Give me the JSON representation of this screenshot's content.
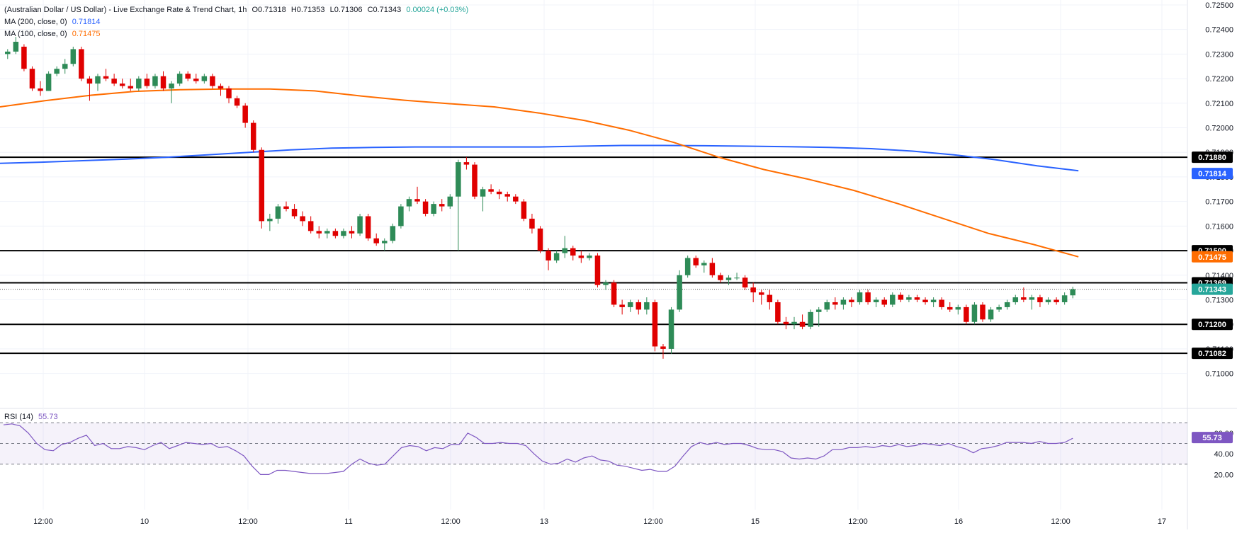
{
  "header": {
    "title": "(Australian Dollar / US Dollar) - Live Exchange Rate & Trend Chart, 1h",
    "ohlc": {
      "open": "O0.71318",
      "high": "H0.71353",
      "low": "L0.71306",
      "close": "C0.71343",
      "change": "0.00024 (+0.03%)"
    },
    "ma200_label": "MA (200, close, 0)",
    "ma200_value": "0.71814",
    "ma100_label": "MA (100, close, 0)",
    "ma100_value": "0.71475",
    "rsi_label": "RSI (14)",
    "rsi_value": "55.73"
  },
  "colors": {
    "up": "#26a69a",
    "down": "#ef5350",
    "ma200": "#2962ff",
    "ma100": "#ff6d00",
    "rsi": "#7e57c2",
    "current": "#26a69a"
  },
  "chart_data": {
    "type": "candlestick",
    "y_ticks": [
      "0.72500",
      "0.72400",
      "0.72300",
      "0.72200",
      "0.72100",
      "0.72000",
      "0.71900",
      "0.71800",
      "0.71700",
      "0.71600",
      "0.71500",
      "0.71400",
      "0.71300",
      "0.71200",
      "0.71100",
      "0.71000"
    ],
    "ylim": [
      0.7095,
      0.7252
    ],
    "x_ticks": [
      "12:00",
      "10",
      "12:00",
      "11",
      "12:00",
      "13",
      "12:00",
      "15",
      "12:00",
      "16",
      "12:00",
      "17"
    ],
    "horizontal_levels": [
      {
        "value": 0.7188,
        "label": "0.71880"
      },
      {
        "value": 0.715,
        "label": "0.71500"
      },
      {
        "value": 0.71369,
        "label": "0.71369"
      },
      {
        "value": 0.712,
        "label": "0.71200"
      },
      {
        "value": 0.71082,
        "label": "0.71082"
      }
    ],
    "price_badges": [
      {
        "value": 0.71814,
        "label": "0.71814",
        "series": "ma200"
      },
      {
        "value": 0.71475,
        "label": "0.71475",
        "series": "ma100"
      },
      {
        "value": 0.71343,
        "label": "0.71343",
        "series": "current"
      }
    ],
    "candles": [
      [
        0.723,
        0.7232,
        0.7228,
        0.7231
      ],
      [
        0.7231,
        0.7237,
        0.723,
        0.7235
      ],
      [
        0.7233,
        0.7234,
        0.7223,
        0.7224
      ],
      [
        0.7224,
        0.7225,
        0.7215,
        0.7216
      ],
      [
        0.7216,
        0.7219,
        0.7213,
        0.7215
      ],
      [
        0.7215,
        0.7223,
        0.7215,
        0.7222
      ],
      [
        0.7222,
        0.7225,
        0.7221,
        0.7224
      ],
      [
        0.7224,
        0.7228,
        0.7222,
        0.7226
      ],
      [
        0.7226,
        0.7233,
        0.7225,
        0.7232
      ],
      [
        0.7232,
        0.7233,
        0.7219,
        0.722
      ],
      [
        0.722,
        0.7221,
        0.7211,
        0.7218
      ],
      [
        0.7218,
        0.7222,
        0.7215,
        0.7221
      ],
      [
        0.7221,
        0.7224,
        0.7219,
        0.722
      ],
      [
        0.722,
        0.7222,
        0.7217,
        0.7218
      ],
      [
        0.7218,
        0.722,
        0.7216,
        0.7217
      ],
      [
        0.7217,
        0.722,
        0.7215,
        0.7216
      ],
      [
        0.7216,
        0.7221,
        0.7215,
        0.722
      ],
      [
        0.722,
        0.7222,
        0.7216,
        0.7217
      ],
      [
        0.7217,
        0.7222,
        0.7216,
        0.7221
      ],
      [
        0.7221,
        0.7223,
        0.7215,
        0.7216
      ],
      [
        0.7216,
        0.7219,
        0.721,
        0.7218
      ],
      [
        0.7218,
        0.7223,
        0.7217,
        0.7222
      ],
      [
        0.7222,
        0.7223,
        0.7219,
        0.722
      ],
      [
        0.722,
        0.7222,
        0.7218,
        0.7219
      ],
      [
        0.7219,
        0.7222,
        0.7218,
        0.7221
      ],
      [
        0.7221,
        0.7222,
        0.7216,
        0.7217
      ],
      [
        0.7217,
        0.7218,
        0.7213,
        0.7216
      ],
      [
        0.7216,
        0.7217,
        0.721,
        0.7212
      ],
      [
        0.7212,
        0.7213,
        0.7208,
        0.7209
      ],
      [
        0.7209,
        0.721,
        0.72,
        0.7202
      ],
      [
        0.7202,
        0.7203,
        0.719,
        0.7191
      ],
      [
        0.7191,
        0.7192,
        0.7159,
        0.7162
      ],
      [
        0.7162,
        0.7165,
        0.7158,
        0.7163
      ],
      [
        0.7163,
        0.7169,
        0.7161,
        0.7168
      ],
      [
        0.7168,
        0.717,
        0.7166,
        0.7167
      ],
      [
        0.7167,
        0.7169,
        0.7163,
        0.7164
      ],
      [
        0.7164,
        0.7166,
        0.716,
        0.7162
      ],
      [
        0.7162,
        0.7164,
        0.7157,
        0.7158
      ],
      [
        0.7158,
        0.716,
        0.7155,
        0.7157
      ],
      [
        0.7157,
        0.7159,
        0.7155,
        0.7158
      ],
      [
        0.7158,
        0.7159,
        0.7155,
        0.7156
      ],
      [
        0.7156,
        0.7159,
        0.7155,
        0.7158
      ],
      [
        0.7158,
        0.716,
        0.7155,
        0.7157
      ],
      [
        0.7157,
        0.7165,
        0.7156,
        0.7164
      ],
      [
        0.7164,
        0.7165,
        0.7154,
        0.7155
      ],
      [
        0.7155,
        0.7157,
        0.7152,
        0.7153
      ],
      [
        0.7153,
        0.7155,
        0.715,
        0.7154
      ],
      [
        0.7154,
        0.7161,
        0.7153,
        0.716
      ],
      [
        0.716,
        0.7169,
        0.7159,
        0.7168
      ],
      [
        0.7168,
        0.7172,
        0.7166,
        0.7171
      ],
      [
        0.7171,
        0.7176,
        0.7169,
        0.717
      ],
      [
        0.717,
        0.7171,
        0.7164,
        0.7165
      ],
      [
        0.7165,
        0.717,
        0.7164,
        0.7169
      ],
      [
        0.7169,
        0.7171,
        0.7166,
        0.7168
      ],
      [
        0.7168,
        0.7173,
        0.7167,
        0.7172
      ],
      [
        0.7172,
        0.7187,
        0.715,
        0.7186
      ],
      [
        0.7186,
        0.7188,
        0.7183,
        0.7185
      ],
      [
        0.7185,
        0.7186,
        0.7171,
        0.7172
      ],
      [
        0.7172,
        0.7176,
        0.7166,
        0.7175
      ],
      [
        0.7175,
        0.7177,
        0.7173,
        0.7174
      ],
      [
        0.7174,
        0.7175,
        0.7171,
        0.7173
      ],
      [
        0.7173,
        0.7174,
        0.717,
        0.7172
      ],
      [
        0.7172,
        0.7173,
        0.7169,
        0.717
      ],
      [
        0.717,
        0.7171,
        0.7162,
        0.7163
      ],
      [
        0.7163,
        0.7165,
        0.7157,
        0.7159
      ],
      [
        0.7159,
        0.716,
        0.7149,
        0.715
      ],
      [
        0.715,
        0.7151,
        0.7142,
        0.7146
      ],
      [
        0.7146,
        0.715,
        0.7145,
        0.7149
      ],
      [
        0.7149,
        0.7156,
        0.7147,
        0.7151
      ],
      [
        0.7151,
        0.7152,
        0.7146,
        0.7148
      ],
      [
        0.7148,
        0.715,
        0.7145,
        0.7147
      ],
      [
        0.7147,
        0.7149,
        0.7146,
        0.7148
      ],
      [
        0.7148,
        0.7149,
        0.7135,
        0.7136
      ],
      [
        0.7136,
        0.7138,
        0.7134,
        0.7137
      ],
      [
        0.7137,
        0.7138,
        0.7127,
        0.7128
      ],
      [
        0.7128,
        0.713,
        0.7124,
        0.7127
      ],
      [
        0.7127,
        0.713,
        0.7125,
        0.7129
      ],
      [
        0.7129,
        0.713,
        0.7124,
        0.7126
      ],
      [
        0.7126,
        0.7131,
        0.7124,
        0.7129
      ],
      [
        0.7129,
        0.713,
        0.7109,
        0.7111
      ],
      [
        0.7111,
        0.7112,
        0.7106,
        0.711
      ],
      [
        0.711,
        0.7127,
        0.7108,
        0.7126
      ],
      [
        0.7126,
        0.7142,
        0.7125,
        0.714
      ],
      [
        0.714,
        0.7148,
        0.7139,
        0.7147
      ],
      [
        0.7147,
        0.7148,
        0.7143,
        0.7144
      ],
      [
        0.7144,
        0.7146,
        0.7141,
        0.7145
      ],
      [
        0.7145,
        0.7147,
        0.7139,
        0.714
      ],
      [
        0.714,
        0.7141,
        0.7137,
        0.7138
      ],
      [
        0.7138,
        0.714,
        0.7136,
        0.7139
      ],
      [
        0.7139,
        0.7141,
        0.7138,
        0.7139
      ],
      [
        0.7139,
        0.714,
        0.7134,
        0.7135
      ],
      [
        0.7135,
        0.7137,
        0.7129,
        0.7133
      ],
      [
        0.7133,
        0.7134,
        0.7128,
        0.7132
      ],
      [
        0.7132,
        0.7134,
        0.7126,
        0.7129
      ],
      [
        0.7129,
        0.713,
        0.712,
        0.7121
      ],
      [
        0.7121,
        0.7123,
        0.7118,
        0.712
      ],
      [
        0.712,
        0.7123,
        0.7118,
        0.7121
      ],
      [
        0.7121,
        0.7124,
        0.7118,
        0.7119
      ],
      [
        0.7119,
        0.7126,
        0.7118,
        0.7125
      ],
      [
        0.7125,
        0.7127,
        0.7119,
        0.7126
      ],
      [
        0.7126,
        0.713,
        0.7125,
        0.7129
      ],
      [
        0.7129,
        0.7131,
        0.7126,
        0.7128
      ],
      [
        0.7128,
        0.7131,
        0.7126,
        0.713
      ],
      [
        0.713,
        0.7131,
        0.7127,
        0.7129
      ],
      [
        0.7129,
        0.7134,
        0.7128,
        0.7133
      ],
      [
        0.7133,
        0.7134,
        0.7128,
        0.7129
      ],
      [
        0.7129,
        0.7131,
        0.7127,
        0.713
      ],
      [
        0.713,
        0.7131,
        0.7127,
        0.7128
      ],
      [
        0.7128,
        0.7133,
        0.7127,
        0.7132
      ],
      [
        0.7132,
        0.7133,
        0.7129,
        0.713
      ],
      [
        0.713,
        0.7132,
        0.7129,
        0.7131
      ],
      [
        0.7131,
        0.7132,
        0.7129,
        0.713
      ],
      [
        0.713,
        0.7131,
        0.7128,
        0.7129
      ],
      [
        0.7129,
        0.7131,
        0.7127,
        0.713
      ],
      [
        0.713,
        0.7131,
        0.7126,
        0.7127
      ],
      [
        0.7127,
        0.7129,
        0.7125,
        0.7126
      ],
      [
        0.7126,
        0.7128,
        0.7124,
        0.7127
      ],
      [
        0.7127,
        0.7128,
        0.712,
        0.7121
      ],
      [
        0.7121,
        0.7129,
        0.712,
        0.7128
      ],
      [
        0.7128,
        0.7129,
        0.7121,
        0.7122
      ],
      [
        0.7122,
        0.7127,
        0.7121,
        0.7126
      ],
      [
        0.7126,
        0.7128,
        0.7125,
        0.7127
      ],
      [
        0.7127,
        0.713,
        0.7126,
        0.7129
      ],
      [
        0.7129,
        0.7132,
        0.7128,
        0.7131
      ],
      [
        0.7131,
        0.7135,
        0.7129,
        0.713
      ],
      [
        0.713,
        0.7132,
        0.7126,
        0.7131
      ],
      [
        0.7131,
        0.7132,
        0.7127,
        0.7129
      ],
      [
        0.7129,
        0.7131,
        0.7128,
        0.713
      ],
      [
        0.713,
        0.7131,
        0.7128,
        0.7129
      ],
      [
        0.7129,
        0.7133,
        0.7128,
        0.71318
      ],
      [
        0.71318,
        0.71353,
        0.71306,
        0.71343
      ]
    ],
    "ma200": [
      0.71855,
      0.7186,
      0.71866,
      0.71872,
      0.7188,
      0.7189,
      0.719,
      0.7191,
      0.71917,
      0.7192,
      0.71922,
      0.71922,
      0.71922,
      0.71922,
      0.71925,
      0.71928,
      0.71928,
      0.71927,
      0.71925,
      0.71923,
      0.7192,
      0.71915,
      0.71905,
      0.7189,
      0.7187,
      0.71845,
      0.71825
    ],
    "ma100": [
      0.72085,
      0.7211,
      0.72132,
      0.72148,
      0.72155,
      0.72158,
      0.72158,
      0.7215,
      0.7213,
      0.72112,
      0.72098,
      0.72085,
      0.7206,
      0.7203,
      0.7199,
      0.7194,
      0.7188,
      0.7183,
      0.7179,
      0.71745,
      0.7169,
      0.7163,
      0.7157,
      0.71525,
      0.71475
    ],
    "rsi": {
      "label": "RSI (14)",
      "levels": [
        70,
        50,
        30
      ],
      "y_ticks": [
        "60.00",
        "40.00",
        "20.00"
      ],
      "ylim": [
        10,
        75
      ],
      "current": 55.73,
      "values": [
        68,
        69,
        67,
        60,
        50,
        44,
        43,
        49,
        51,
        55,
        58,
        48,
        50,
        45,
        45,
        47,
        46,
        44,
        48,
        51,
        45,
        48,
        51,
        50,
        49,
        50,
        46,
        47,
        43,
        38,
        28,
        20,
        20,
        24,
        24,
        23,
        22,
        21,
        21,
        21,
        22,
        23,
        30,
        35,
        31,
        29,
        30,
        38,
        46,
        48,
        47,
        43,
        46,
        45,
        49,
        49,
        60,
        56,
        50,
        50,
        51,
        50,
        50,
        48,
        40,
        33,
        30,
        31,
        35,
        32,
        36,
        38,
        34,
        33,
        29,
        28,
        26,
        24,
        25,
        23,
        23,
        28,
        38,
        47,
        51,
        49,
        51,
        49,
        50,
        50,
        48,
        45,
        44,
        44,
        42,
        36,
        35,
        36,
        35,
        38,
        44,
        44,
        46,
        46,
        47,
        46,
        48,
        47,
        49,
        47,
        48,
        50,
        49,
        48,
        50,
        47,
        45,
        41,
        45,
        46,
        48,
        51,
        51,
        51,
        50,
        52,
        50,
        50,
        51,
        55
      ]
    }
  }
}
